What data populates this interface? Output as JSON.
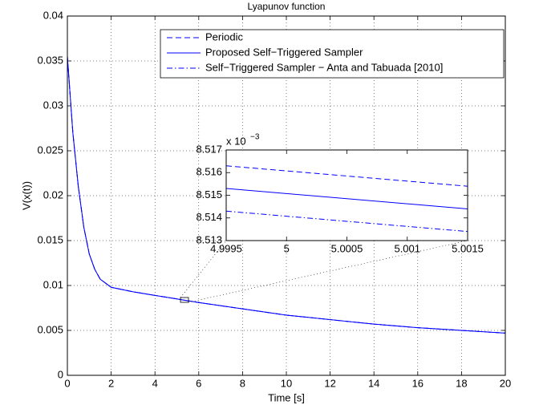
{
  "chart_data": [
    {
      "type": "line",
      "title": "Lyapunov function",
      "x_label": "Time [s]",
      "y_label": "V(x(t))",
      "x": [
        0,
        0.25,
        0.5,
        0.75,
        1,
        1.25,
        1.5,
        2,
        3,
        4,
        5,
        6,
        8,
        10,
        12,
        14,
        16,
        18,
        20
      ],
      "series": [
        {
          "name": "Periodic",
          "color": "#0000ff",
          "linestyle": "--",
          "values": [
            0.0355,
            0.027,
            0.021,
            0.0165,
            0.0135,
            0.0118,
            0.0107,
            0.0098,
            0.0093,
            0.0089,
            0.0085,
            0.0081,
            0.0074,
            0.0067,
            0.0062,
            0.0057,
            0.0053,
            0.005,
            0.0047
          ]
        },
        {
          "name": "Proposed Self−Triggered Sampler",
          "color": "#0000ff",
          "linestyle": "-",
          "values": [
            0.0355,
            0.027,
            0.021,
            0.0165,
            0.0135,
            0.0118,
            0.0107,
            0.0098,
            0.0093,
            0.0089,
            0.0085,
            0.0081,
            0.0074,
            0.0067,
            0.0062,
            0.0057,
            0.0053,
            0.005,
            0.0047
          ]
        },
        {
          "name": "Self−Triggered Sampler − Anta and Tabuada [2010]",
          "color": "#0000ff",
          "linestyle": "-.",
          "values": [
            0.0355,
            0.027,
            0.021,
            0.0165,
            0.0135,
            0.0118,
            0.0107,
            0.0098,
            0.0093,
            0.0089,
            0.0085,
            0.0081,
            0.0074,
            0.0067,
            0.0062,
            0.0057,
            0.0053,
            0.005,
            0.0047
          ]
        }
      ],
      "xlim": [
        0,
        20
      ],
      "xticks": [
        0,
        2,
        4,
        6,
        8,
        10,
        12,
        14,
        16,
        18,
        20
      ],
      "ylim": [
        0,
        0.04
      ],
      "yticks": [
        0,
        0.005,
        0.01,
        0.015,
        0.02,
        0.025,
        0.03,
        0.035,
        0.04
      ],
      "grid": true,
      "legend": "upper right"
    },
    {
      "type": "line",
      "y_offset_label": {
        "base": "x 10",
        "exponent": "−3"
      },
      "x": [
        4.9995,
        5.0015
      ],
      "series": [
        {
          "color": "#0000ff",
          "linestyle": "--",
          "values": [
            8.5163,
            8.5154
          ]
        },
        {
          "color": "#0000ff",
          "linestyle": "-",
          "values": [
            8.5153,
            8.5144
          ]
        },
        {
          "color": "#0000ff",
          "linestyle": "-.",
          "values": [
            8.5143,
            8.5134
          ]
        }
      ],
      "xlim": [
        4.9995,
        5.0015
      ],
      "xticks": [
        4.9995,
        5,
        5.0005,
        5.001,
        5.0015
      ],
      "ylim": [
        8.513,
        8.517
      ],
      "yticks": [
        8.513,
        8.514,
        8.515,
        8.516,
        8.517
      ],
      "grid": false
    }
  ]
}
